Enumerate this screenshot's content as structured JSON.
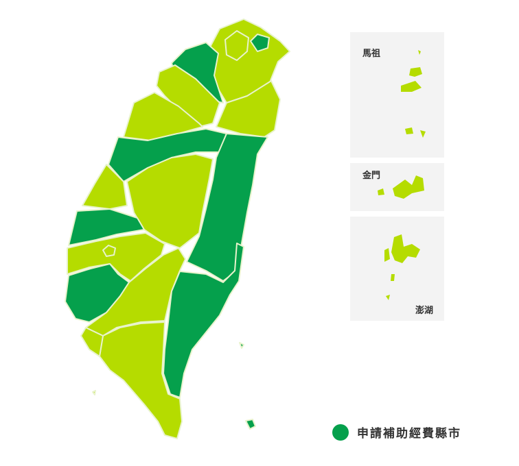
{
  "colors": {
    "funded": "#05a04c",
    "not_funded": "#b5dc00",
    "inset_bg": "#f3f3f3"
  },
  "insets": {
    "matsu": "馬祖",
    "kinmen": "金門",
    "penghu": "澎湖"
  },
  "legend": {
    "label": "申請補助經費縣市",
    "icon": "green-circle"
  },
  "regions_funded": [
    "Keelung",
    "Taipei",
    "Taichung",
    "Hualien",
    "Taitung",
    "Chiayi County",
    "Taoyuan (north coast)",
    "Changhua (south)",
    "Green Island",
    "Orchid Island"
  ]
}
